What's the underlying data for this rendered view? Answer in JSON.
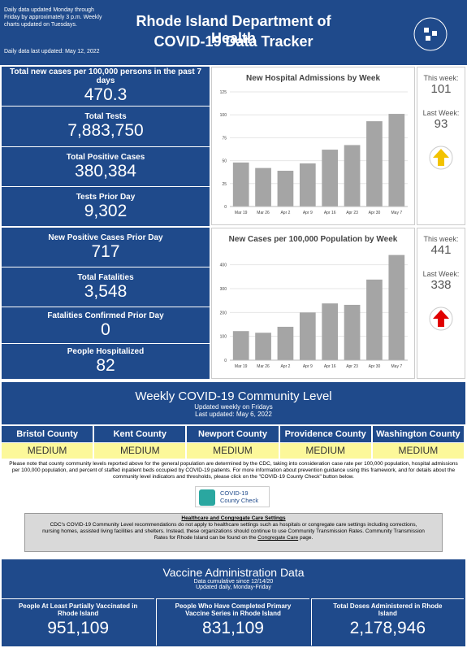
{
  "header": {
    "notes": [
      "Daily data updated Monday through Friday by approximately 3 p.m. Weekly charts updated on Tuesdays.",
      "Daily data last updated: May 12, 2022"
    ],
    "title": [
      "Rhode Island Department of Health",
      "COVID-19 Data Tracker"
    ]
  },
  "stats": [
    {
      "label": "Total new cases per 100,000 persons in the past 7 days",
      "value": "470.3"
    },
    {
      "label": "Total Tests",
      "value": "7,883,750"
    },
    {
      "label": "Total Positive Cases",
      "value": "380,384"
    },
    {
      "label": "Tests Prior Day",
      "value": "9,302"
    },
    {
      "label": "New Positive Cases Prior Day",
      "value": "717"
    },
    {
      "label": "Total Fatalities",
      "value": "3,548"
    },
    {
      "label": "Fatalities Confirmed Prior Day",
      "value": "0"
    },
    {
      "label": "People Hospitalized",
      "value": "82"
    }
  ],
  "chart_data": [
    {
      "type": "bar",
      "title": "New Hospital Admissions by Week",
      "categories": [
        "Mar 19",
        "Mar 26",
        "Apr 2",
        "Apr 9",
        "Apr 16",
        "Apr 23",
        "Apr 30",
        "May 7"
      ],
      "values": [
        48,
        42,
        39,
        47,
        62,
        67,
        93,
        101
      ],
      "color": "#a5a5a5",
      "ylim": [
        0,
        125
      ],
      "yticks": [
        0,
        25,
        50,
        75,
        100,
        125
      ],
      "grid": true
    },
    {
      "type": "bar",
      "title": "New Cases per 100,000 Population by Week",
      "categories": [
        "Mar 19",
        "Mar 26",
        "Apr 2",
        "Apr 9",
        "Apr 16",
        "Apr 23",
        "Apr 30",
        "May 7"
      ],
      "values": [
        122,
        115,
        140,
        200,
        238,
        232,
        338,
        441
      ],
      "color": "#a5a5a5",
      "ylim": [
        0,
        450
      ],
      "yticks": [
        0,
        100,
        200,
        300,
        400
      ],
      "grid": true
    }
  ],
  "weekly": [
    {
      "this_label": "This week:",
      "this_value": 101,
      "last_label": "Last Week:",
      "last_value": 93
    },
    {
      "this_label": "This week:",
      "this_value": 441,
      "last_label": "Last Week:",
      "last_value": 338
    }
  ],
  "community": {
    "title": "Weekly COVID-19 Community Level",
    "subtitle": [
      "Updated weekly on Fridays",
      "Last updated: May 6, 2022"
    ],
    "counties": [
      {
        "name": "Bristol County",
        "level": "MEDIUM"
      },
      {
        "name": "Kent County",
        "level": "MEDIUM"
      },
      {
        "name": "Newport County",
        "level": "MEDIUM"
      },
      {
        "name": "Providence County",
        "level": "MEDIUM"
      },
      {
        "name": "Washington County",
        "level": "MEDIUM"
      }
    ],
    "note": "Please note that county community levels reported above for the general population are determined by the CDC, taking into consideration case rate per 100,000 population, hospital admissions per 100,000 population, and percent of staffed inpatient beds occupied by COVID-19 patients. For more information about prevention guidance using this framework, and for details about the community level indicators and thresholds, please click on the \"COVID-19 County Check\" button below.",
    "button": [
      "COVID-19",
      "County Check"
    ],
    "box": {
      "heading": "Healthcare and Congregate Care Settings",
      "text": "CDC's COVID-19 Community Level recommendations do not apply to healthcare settings such as hospitals or congregate care settings including corrections, nursing homes, assisted living facilities and shelters. Instead, these organizations should continue to use Community Transmission Rates. Community Transmission Rates for Rhode Island can be found on the",
      "link": "Congregate Care",
      "end": "page."
    }
  },
  "vaccine": {
    "title": "Vaccine Administration Data",
    "subtitle": [
      "Data cumulative since 12/14/20",
      "Updated daily, Monday-Friday"
    ],
    "items": [
      {
        "label": "People At Least Partially Vaccinated in Rhode Island",
        "value": "951,109"
      },
      {
        "label": "People Who Have Completed Primary Vaccine Series in Rhode Island",
        "value": "831,109"
      },
      {
        "label": "Total Doses Administered in Rhode Island",
        "value": "2,178,946"
      }
    ]
  }
}
